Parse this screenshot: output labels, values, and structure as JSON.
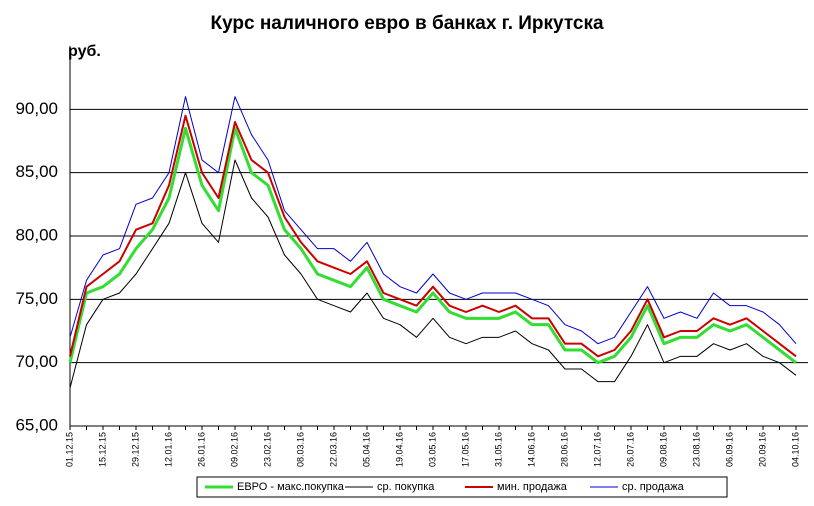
{
  "chart_data": {
    "type": "line",
    "title": "Курс наличного евро в банках г. Иркутска",
    "y_label": "руб.",
    "categories": [
      "01.12.15",
      null,
      "15.12.15",
      null,
      "29.12.15",
      null,
      "12.01.16",
      null,
      "26.01.16",
      null,
      "09.02.16",
      null,
      "23.02.16",
      null,
      "08.03.16",
      null,
      "22.03.16",
      null,
      "05.04.16",
      null,
      "19.04.16",
      null,
      "03.05.16",
      null,
      "17.05.16",
      null,
      "31.05.16",
      null,
      "14.06.16",
      null,
      "28.06.16",
      null,
      "12.07.16",
      null,
      "26.07.16",
      null,
      "09.08.16",
      null,
      "23.08.16",
      null,
      "06.09.16",
      null,
      "20.09.16",
      null,
      "04.10.16"
    ],
    "series": [
      {
        "name": "ЕВРО - макс.покупка",
        "color": "#33dd33",
        "width": 3,
        "values": [
          70,
          75.5,
          76,
          77,
          79,
          80.5,
          83,
          88.5,
          84,
          82,
          88.5,
          85,
          84,
          80.5,
          79,
          77,
          76.5,
          76,
          77.5,
          75,
          74.5,
          74,
          75.5,
          74,
          73.5,
          73.5,
          73.5,
          74,
          73,
          73,
          71,
          71,
          70,
          70.5,
          72,
          74.5,
          71.5,
          72,
          72,
          73,
          72.5,
          73,
          72,
          71,
          70
        ]
      },
      {
        "name": "ср. покупка",
        "color": "#000000",
        "width": 1,
        "values": [
          68,
          73,
          75,
          75.5,
          77,
          79,
          81,
          85,
          81,
          79.5,
          86,
          83,
          81.5,
          78.5,
          77,
          75,
          74.5,
          74,
          75.5,
          73.5,
          73,
          72,
          73.5,
          72,
          71.5,
          72,
          72,
          72.5,
          71.5,
          71,
          69.5,
          69.5,
          68.5,
          68.5,
          70.5,
          73,
          70,
          70.5,
          70.5,
          71.5,
          71,
          71.5,
          70.5,
          70,
          69
        ]
      },
      {
        "name": "мин. продажа",
        "color": "#cc0000",
        "width": 2,
        "values": [
          70.5,
          76,
          77,
          78,
          80.5,
          81,
          84,
          89.5,
          85,
          83,
          89,
          86,
          85,
          81.5,
          79.5,
          78,
          77.5,
          77,
          78,
          75.5,
          75,
          74.5,
          76,
          74.5,
          74,
          74.5,
          74,
          74.5,
          73.5,
          73.5,
          71.5,
          71.5,
          70.5,
          71,
          72.5,
          75,
          72,
          72.5,
          72.5,
          73.5,
          73,
          73.5,
          72.5,
          71.5,
          70.5
        ]
      },
      {
        "name": "ср. продажа",
        "color": "#0000cc",
        "width": 1,
        "values": [
          72,
          76.5,
          78.5,
          79,
          82.5,
          83,
          85,
          91,
          86,
          85,
          91,
          88,
          86,
          82,
          80.5,
          79,
          79,
          78,
          79.5,
          77,
          76,
          75.5,
          77,
          75.5,
          75,
          75.5,
          75.5,
          75.5,
          75,
          74.5,
          73,
          72.5,
          71.5,
          72,
          74,
          76,
          73.5,
          74,
          73.5,
          75.5,
          74.5,
          74.5,
          74,
          73,
          71.5
        ]
      }
    ],
    "ylim": [
      65,
      95
    ],
    "yticks": [
      {
        "value": 65,
        "label": "65,00"
      },
      {
        "value": 70,
        "label": "70,00"
      },
      {
        "value": 75,
        "label": "75,00"
      },
      {
        "value": 80,
        "label": "80,00"
      },
      {
        "value": 85,
        "label": "85,00"
      },
      {
        "value": 90,
        "label": "90,00"
      }
    ],
    "grid": true,
    "legend": "bottom"
  }
}
